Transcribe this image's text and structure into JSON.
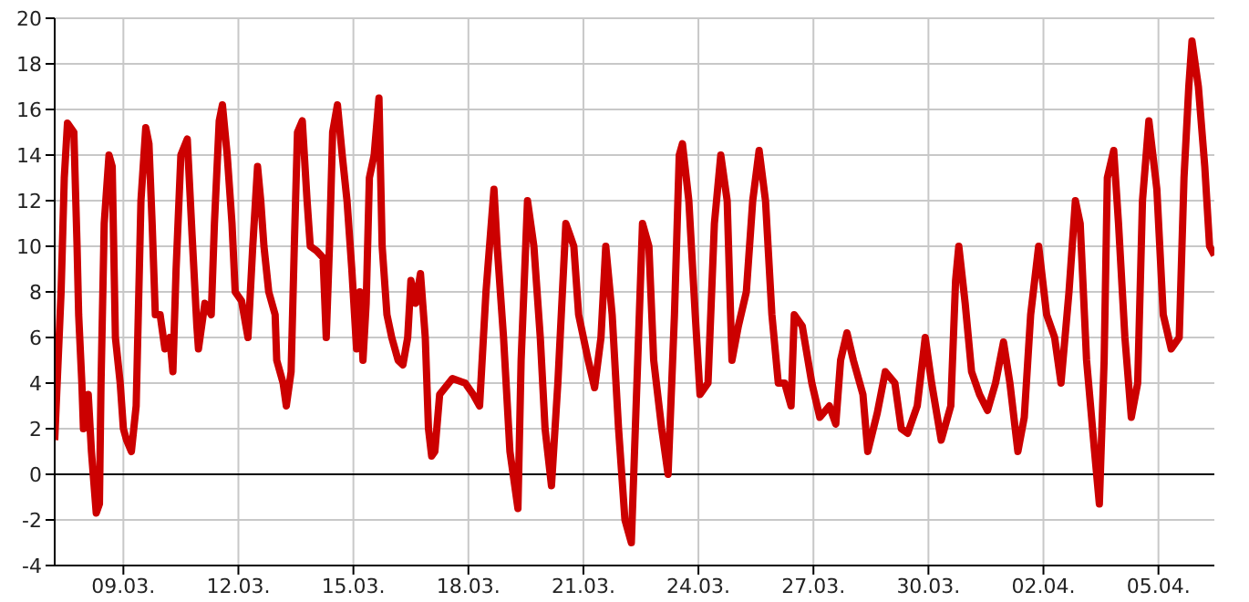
{
  "chart_data": {
    "type": "line",
    "x": [
      "--03-07T05:00",
      "--03-07T09:00",
      "--03-07T11:00",
      "--03-07T13:00",
      "--03-07T17:00",
      "--03-07T19:00",
      "--03-07T20:00",
      "--03-07T22:00",
      "--03-07T23:00",
      "--03-08T02:00",
      "--03-08T04:00",
      "--03-08T07:00",
      "--03-08T09:00",
      "--03-08T10:00",
      "--03-08T12:00",
      "--03-08T15:00",
      "--03-08T17:00",
      "--03-08T19:00",
      "--03-08T22:00",
      "--03-09T00:00",
      "--03-09T02:00",
      "--03-09T05:00",
      "--03-09T08:00",
      "--03-09T11:00",
      "--03-09T14:00",
      "--03-09T16:00",
      "--03-09T18:00",
      "--03-09T20:00",
      "--03-09T23:00",
      "--03-10T02:00",
      "--03-10T05:00",
      "--03-10T07:00",
      "--03-10T09:00",
      "--03-10T12:00",
      "--03-10T16:00",
      "--03-10T19:00",
      "--03-10T22:00",
      "--03-10T23:00",
      "--03-11T03:00",
      "--03-11T07:00",
      "--03-11T09:00",
      "--03-11T12:00",
      "--03-11T14:00",
      "--03-11T17:00",
      "--03-11T20:00",
      "--03-11T22:00",
      "--03-12T02:00",
      "--03-12T06:00",
      "--03-12T09:00",
      "--03-12T12:00",
      "--03-12T14:00",
      "--03-12T16:00",
      "--03-12T19:00",
      "--03-12T23:00",
      "--03-13T00:00",
      "--03-13T04:00",
      "--03-13T06:00",
      "--03-13T09:00",
      "--03-13T11:00",
      "--03-13T13:00",
      "--03-13T16:00",
      "--03-13T19:00",
      "--03-13T21:00",
      "--03-14T01:00",
      "--03-14T05:00",
      "--03-14T07:00",
      "--03-14T09:00",
      "--03-14T11:00",
      "--03-14T14:00",
      "--03-14T17:00",
      "--03-14T20:00",
      "--03-14T23:00",
      "--03-15T02:00",
      "--03-15T04:00",
      "--03-15T06:00",
      "--03-15T08:00",
      "--03-15T10:00",
      "--03-15T13:00",
      "--03-15T16:00",
      "--03-15T18:00",
      "--03-15T21:00",
      "--03-16T00:00",
      "--03-16T04:00",
      "--03-16T07:00",
      "--03-16T10:00",
      "--03-16T12:00",
      "--03-16T15:00",
      "--03-16T18:00",
      "--03-16T21:00",
      "--03-16T23:00",
      "--03-17T01:00",
      "--03-17T03:00",
      "--03-17T06:00",
      "--03-17T14:00",
      "--03-17T22:00",
      "--03-18T03:00",
      "--03-18T07:00",
      "--03-18T11:00",
      "--03-18T16:00",
      "--03-18T18:00",
      "--03-18T22:00",
      "--03-19T02:00",
      "--03-19T07:00",
      "--03-19T09:00",
      "--03-19T13:00",
      "--03-19T17:00",
      "--03-19T21:00",
      "--03-20T00:00",
      "--03-20T04:00",
      "--03-20T08:00",
      "--03-20T13:00",
      "--03-20T18:00",
      "--03-20T21:00",
      "--03-21T03:00",
      "--03-21T07:00",
      "--03-21T11:00",
      "--03-21T14:00",
      "--03-21T18:00",
      "--03-21T22:00",
      "--03-22T02:00",
      "--03-22T06:00",
      "--03-22T09:00",
      "--03-22T13:00",
      "--03-22T17:00",
      "--03-22T20:00",
      "--03-23T01:00",
      "--03-23T05:00",
      "--03-23T09:00",
      "--03-23T12:00",
      "--03-23T14:00",
      "--03-23T18:00",
      "--03-23T22:00",
      "--03-24T01:00",
      "--03-24T06:00",
      "--03-24T10:00",
      "--03-24T14:00",
      "--03-24T18:00",
      "--03-24T21:00",
      "--03-25T01:00",
      "--03-25T06:00",
      "--03-25T10:00",
      "--03-25T14:00",
      "--03-25T18:00",
      "--03-25T22:00",
      "--03-26T02:00",
      "--03-26T06:00",
      "--03-26T10:00",
      "--03-26T12:00",
      "--03-26T17:00",
      "--03-26T23:00",
      "--03-27T04:00",
      "--03-27T10:00",
      "--03-27T14:00",
      "--03-27T17:00",
      "--03-27T21:00",
      "--03-28T01:00",
      "--03-28T07:00",
      "--03-28T10:00",
      "--03-28T16:00",
      "--03-28T21:00",
      "--03-29T03:00",
      "--03-29T07:00",
      "--03-29T11:00",
      "--03-29T17:00",
      "--03-29T22:00",
      "--03-30T02:00",
      "--03-30T08:00",
      "--03-30T14:00",
      "--03-30T17:00",
      "--03-30T19:00",
      "--03-30T23:00",
      "--03-31T03:00",
      "--03-31T08:00",
      "--03-31T13:00",
      "--03-31T18:00",
      "--03-31T23:00",
      "--04-01T03:00",
      "--04-01T08:00",
      "--04-01T12:00",
      "--04-01T16:00",
      "--04-01T21:00",
      "--04-02T02:00",
      "--04-02T07:00",
      "--04-02T11:00",
      "--04-02T16:00",
      "--04-02T20:00",
      "--04-02T23:00",
      "--04-03T03:00",
      "--04-03T08:00",
      "--04-03T11:00",
      "--04-03T14:00",
      "--04-03T16:00",
      "--04-03T20:00",
      "--04-03T23:00",
      "--04-04T03:00",
      "--04-04T07:00",
      "--04-04T11:00",
      "--04-04T14:00",
      "--04-04T18:00",
      "--04-04T23:00",
      "--04-05T03:00",
      "--04-05T08:00",
      "--04-05T13:00",
      "--04-05T16:00",
      "--04-05T19:00",
      "--04-05T21:00",
      "--04-06T01:00",
      "--04-06T05:00",
      "--04-06T08:00",
      "--04-06T11:00"
    ],
    "series": [
      {
        "color": "#cc0000",
        "values": [
          1.5,
          8,
          13,
          15.4,
          15,
          10,
          7,
          4,
          2,
          3.5,
          1,
          -1.7,
          -1.3,
          4,
          11,
          14,
          13.5,
          6,
          4,
          2,
          1.5,
          1,
          3,
          12,
          15.2,
          14.5,
          11,
          7,
          7,
          5.5,
          6,
          4.5,
          9,
          14,
          14.7,
          10.5,
          6.5,
          5.5,
          7.5,
          7,
          11,
          15.5,
          16.2,
          14,
          11,
          8,
          7.6,
          6,
          10,
          13.5,
          12,
          10,
          8,
          7,
          5,
          4,
          3,
          4.5,
          10,
          15,
          15.5,
          12,
          10,
          9.8,
          9.5,
          6,
          10,
          15,
          16.2,
          14,
          12,
          9,
          5.5,
          8,
          5,
          7.5,
          13,
          14,
          16.5,
          10,
          7,
          6,
          5,
          4.8,
          6,
          8.5,
          7.5,
          8.8,
          6,
          2,
          0.8,
          1,
          3.5,
          4.2,
          4,
          3.5,
          3,
          8,
          12.5,
          10,
          6,
          1,
          -1.5,
          5,
          12,
          10,
          6,
          2,
          -0.5,
          4,
          11,
          10,
          7,
          5,
          3.8,
          6,
          10,
          7,
          2,
          -2,
          -3,
          3,
          11,
          10,
          5,
          2,
          0,
          7,
          14,
          14.5,
          12,
          7,
          3.5,
          4,
          11,
          14,
          12,
          5,
          6.5,
          8,
          12,
          14.2,
          12,
          7,
          4,
          4,
          3,
          7,
          6.5,
          4,
          2.5,
          3,
          2.2,
          5,
          6.2,
          5,
          3.5,
          1,
          2.7,
          4.5,
          4,
          2,
          1.8,
          3,
          6,
          4,
          1.5,
          3,
          8.5,
          10,
          7.5,
          4.5,
          3.5,
          2.8,
          4,
          5.8,
          4,
          1,
          2.5,
          7,
          10,
          7,
          6,
          4,
          8,
          12,
          11,
          5,
          1,
          -1.3,
          5,
          13,
          14.2,
          11,
          6,
          2.5,
          4,
          12,
          15.5,
          12.5,
          7,
          5.5,
          6,
          13,
          17,
          19,
          17,
          13.5,
          10,
          9.6
        ]
      }
    ],
    "xlim": [
      "--03-07T05:00",
      "--04-06T11:00"
    ],
    "xticks": [
      {
        "value": "--03-09",
        "label": "09.03."
      },
      {
        "value": "--03-12",
        "label": "12.03."
      },
      {
        "value": "--03-15",
        "label": "15.03."
      },
      {
        "value": "--03-18",
        "label": "18.03."
      },
      {
        "value": "--03-21",
        "label": "21.03."
      },
      {
        "value": "--03-24",
        "label": "24.03."
      },
      {
        "value": "--03-27",
        "label": "27.03."
      },
      {
        "value": "--03-30",
        "label": "30.03."
      },
      {
        "value": "--04-02",
        "label": "02.04."
      },
      {
        "value": "--04-05",
        "label": "05.04."
      }
    ],
    "ylim": [
      -4,
      20
    ],
    "yticks": [
      -4,
      -2,
      0,
      2,
      4,
      6,
      8,
      10,
      12,
      14,
      16,
      18,
      20
    ],
    "grid": true,
    "marker": "none",
    "line_style": "solid",
    "ref_lines": [
      {
        "axis": "y",
        "value": 0,
        "color": "#000000"
      }
    ]
  }
}
